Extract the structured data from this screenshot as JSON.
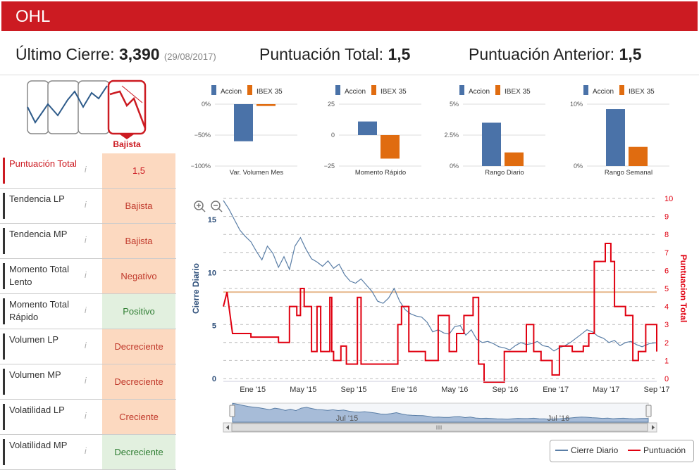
{
  "header": {
    "title": "OHL"
  },
  "summary": {
    "ultimo_label": "Último Cierre:",
    "ultimo_value": "3,390",
    "ultimo_date": "(29/08/2017)",
    "total_label": "Puntuación Total:",
    "total_value": "1,5",
    "anterior_label": "Puntuación Anterior:",
    "anterior_value": "1,5"
  },
  "trend_badge": "Bajista",
  "sidebar": {
    "rows": [
      {
        "label": "Puntuación Total",
        "value": "1,5",
        "status": "neg"
      },
      {
        "label": "Tendencia LP",
        "value": "Bajista",
        "status": "neg"
      },
      {
        "label": "Tendencia MP",
        "value": "Bajista",
        "status": "neg"
      },
      {
        "label": "Momento Total Lento",
        "value": "Negativo",
        "status": "neg"
      },
      {
        "label": "Momento Total Rápido",
        "value": "Positivo",
        "status": "pos"
      },
      {
        "label": "Volumen LP",
        "value": "Decreciente",
        "status": "neg"
      },
      {
        "label": "Volumen MP",
        "value": "Decreciente",
        "status": "neg"
      },
      {
        "label": "Volatilidad LP",
        "value": "Creciente",
        "status": "neg"
      },
      {
        "label": "Volatilidad MP",
        "value": "Decreciente",
        "status": "pos"
      }
    ]
  },
  "info_glyph": "i",
  "colors": {
    "accion": "#4a72a8",
    "ibex": "#e06c10",
    "red": "#cc1b22",
    "price": "#5a7ea6"
  },
  "chart_data": [
    {
      "type": "bar",
      "title": "Var. Volumen Mes",
      "categories": [
        "Accion",
        "IBEX 35"
      ],
      "values": [
        -60,
        -3
      ],
      "yticks": [
        "0%",
        "−50%",
        "−100%"
      ],
      "ylim": [
        -100,
        0
      ]
    },
    {
      "type": "bar",
      "title": "Momento Rápido",
      "categories": [
        "Accion",
        "IBEX 35"
      ],
      "values": [
        11,
        -19
      ],
      "yticks": [
        "25",
        "0",
        "−25"
      ],
      "ylim": [
        -25,
        25
      ]
    },
    {
      "type": "bar",
      "title": "Rango Diario",
      "categories": [
        "Accion",
        "IBEX 35"
      ],
      "values": [
        3.5,
        1.1
      ],
      "yticks": [
        "5%",
        "2.5%",
        "0%"
      ],
      "ylim": [
        0,
        5
      ]
    },
    {
      "type": "bar",
      "title": "Rango Semanal",
      "categories": [
        "Accion",
        "IBEX 35"
      ],
      "values": [
        9.2,
        3.1
      ],
      "yticks": [
        "10%",
        "0%"
      ],
      "ylim": [
        0,
        10
      ]
    },
    {
      "type": "line",
      "xlabels": [
        "Ene '15",
        "May '15",
        "Sep '15",
        "Ene '16",
        "May '16",
        "Sep '16",
        "Ene '17",
        "May '17",
        "Sep '17"
      ],
      "navigator_labels": [
        "Jul '15",
        "Jul '16"
      ],
      "ylabel_left": "Cierre Diario",
      "ylabel_right": "Puntuacion Total",
      "left_ticks": [
        "15",
        "10",
        "5",
        "0"
      ],
      "right_ticks": [
        "10",
        "9",
        "8",
        "7",
        "6",
        "5",
        "4",
        "3",
        "2",
        "1",
        "0"
      ],
      "ylim_left": [
        0,
        17
      ],
      "ylim_right": [
        0,
        10
      ],
      "threshold": 4.8,
      "price": [
        [
          0,
          16.8
        ],
        [
          0.3,
          16
        ],
        [
          0.6,
          15
        ],
        [
          0.9,
          14
        ],
        [
          1.2,
          13.4
        ],
        [
          1.5,
          12.9
        ],
        [
          1.8,
          12
        ],
        [
          2.1,
          11.2
        ],
        [
          2.4,
          12.5
        ],
        [
          2.7,
          11.8
        ],
        [
          3.0,
          10.5
        ],
        [
          3.3,
          11.5
        ],
        [
          3.6,
          10.3
        ],
        [
          3.9,
          12.5
        ],
        [
          4.2,
          13.3
        ],
        [
          4.5,
          12.2
        ],
        [
          4.8,
          11.3
        ],
        [
          5.1,
          11
        ],
        [
          5.4,
          10.6
        ],
        [
          5.7,
          11.1
        ],
        [
          6.0,
          10.4
        ],
        [
          6.3,
          10.8
        ],
        [
          6.6,
          9.8
        ],
        [
          6.9,
          9.2
        ],
        [
          7.2,
          9.0
        ],
        [
          7.5,
          9.4
        ],
        [
          7.8,
          8.8
        ],
        [
          8.1,
          8.2
        ],
        [
          8.4,
          7.3
        ],
        [
          8.7,
          7.1
        ],
        [
          9.0,
          7.6
        ],
        [
          9.3,
          8.5
        ],
        [
          9.6,
          7.3
        ],
        [
          9.9,
          6.5
        ],
        [
          10.2,
          6.1
        ],
        [
          10.5,
          5.9
        ],
        [
          10.8,
          5.8
        ],
        [
          11.1,
          5.3
        ],
        [
          11.4,
          4.4
        ],
        [
          11.7,
          4.6
        ],
        [
          12.0,
          4.3
        ],
        [
          12.3,
          4.2
        ],
        [
          12.6,
          4.9
        ],
        [
          12.9,
          5.0
        ],
        [
          13.2,
          4.1
        ],
        [
          13.5,
          4.6
        ],
        [
          13.8,
          3.7
        ],
        [
          14.1,
          3.4
        ],
        [
          14.4,
          3.5
        ],
        [
          14.7,
          3.3
        ],
        [
          15.0,
          3.0
        ],
        [
          15.3,
          2.9
        ],
        [
          15.6,
          2.7
        ],
        [
          15.9,
          3.1
        ],
        [
          16.2,
          3.4
        ],
        [
          16.5,
          3.2
        ],
        [
          16.8,
          3.3
        ],
        [
          17.1,
          3.5
        ],
        [
          17.4,
          3.1
        ],
        [
          17.7,
          3.0
        ],
        [
          18.0,
          2.6
        ],
        [
          18.3,
          2.9
        ],
        [
          18.6,
          3.1
        ],
        [
          18.9,
          3.4
        ],
        [
          19.2,
          3.8
        ],
        [
          19.5,
          4.2
        ],
        [
          19.8,
          4.6
        ],
        [
          20.1,
          4.4
        ],
        [
          20.4,
          4.0
        ],
        [
          20.7,
          3.8
        ],
        [
          21.0,
          3.4
        ],
        [
          21.3,
          3.6
        ],
        [
          21.6,
          3.1
        ],
        [
          21.9,
          3.4
        ],
        [
          22.2,
          3.5
        ],
        [
          22.5,
          3.2
        ],
        [
          22.8,
          3.0
        ],
        [
          23.2,
          3.3
        ],
        [
          23.6,
          3.39
        ]
      ],
      "score": [
        [
          0,
          4
        ],
        [
          0.2,
          4.8
        ],
        [
          0.5,
          2.5
        ],
        [
          1.5,
          2.5
        ],
        [
          1.5,
          2.3
        ],
        [
          3,
          2.3
        ],
        [
          3,
          2.0
        ],
        [
          3.6,
          2.0
        ],
        [
          3.6,
          4.0
        ],
        [
          4,
          4.0
        ],
        [
          4,
          3.5
        ],
        [
          4.2,
          3.5
        ],
        [
          4.2,
          5.0
        ],
        [
          4.4,
          5.0
        ],
        [
          4.4,
          4.0
        ],
        [
          4.8,
          4.0
        ],
        [
          4.8,
          1.5
        ],
        [
          5.1,
          1.5
        ],
        [
          5.1,
          4.0
        ],
        [
          5.3,
          4.0
        ],
        [
          5.3,
          1.5
        ],
        [
          5.8,
          1.5
        ],
        [
          5.8,
          4.5
        ],
        [
          5.9,
          4.5
        ],
        [
          5.9,
          1.5
        ],
        [
          6,
          1.5
        ],
        [
          6,
          1.0
        ],
        [
          6.4,
          1.0
        ],
        [
          6.4,
          1.8
        ],
        [
          6.7,
          1.8
        ],
        [
          6.7,
          0.8
        ],
        [
          7.3,
          0.8
        ],
        [
          7.3,
          4.5
        ],
        [
          7.5,
          4.5
        ],
        [
          7.5,
          0.8
        ],
        [
          9.5,
          0.8
        ],
        [
          9.5,
          3.0
        ],
        [
          9.7,
          3.0
        ],
        [
          9.7,
          4.0
        ],
        [
          10.1,
          4.0
        ],
        [
          10.1,
          1.5
        ],
        [
          11.0,
          1.5
        ],
        [
          11.0,
          1.0
        ],
        [
          11.7,
          1.0
        ],
        [
          11.7,
          3.5
        ],
        [
          12.3,
          3.5
        ],
        [
          12.3,
          1.5
        ],
        [
          12.7,
          1.5
        ],
        [
          12.7,
          2.5
        ],
        [
          13.1,
          2.5
        ],
        [
          13.1,
          3.5
        ],
        [
          13.6,
          3.5
        ],
        [
          13.6,
          4.5
        ],
        [
          13.9,
          4.5
        ],
        [
          13.9,
          0.8
        ],
        [
          14.2,
          0.8
        ],
        [
          14.2,
          -0.2
        ],
        [
          15.3,
          -0.2
        ],
        [
          15.3,
          1.5
        ],
        [
          16.5,
          1.5
        ],
        [
          16.5,
          3.0
        ],
        [
          16.9,
          3.0
        ],
        [
          16.9,
          1.5
        ],
        [
          17.3,
          1.5
        ],
        [
          17.3,
          1.0
        ],
        [
          17.9,
          1.0
        ],
        [
          17.9,
          0.2
        ],
        [
          18.3,
          0.2
        ],
        [
          18.3,
          1.8
        ],
        [
          19.0,
          1.8
        ],
        [
          19.0,
          1.5
        ],
        [
          19.6,
          1.5
        ],
        [
          19.6,
          1.8
        ],
        [
          19.9,
          1.8
        ],
        [
          19.9,
          2.5
        ],
        [
          20.2,
          2.5
        ],
        [
          20.2,
          6.5
        ],
        [
          20.8,
          6.5
        ],
        [
          20.8,
          7.5
        ],
        [
          21.1,
          7.5
        ],
        [
          21.1,
          6.5
        ],
        [
          21.3,
          6.5
        ],
        [
          21.3,
          4.0
        ],
        [
          21.9,
          4.0
        ],
        [
          21.9,
          3.5
        ],
        [
          22.3,
          3.5
        ],
        [
          22.3,
          1.0
        ],
        [
          22.6,
          1.0
        ],
        [
          22.6,
          1.5
        ],
        [
          23.0,
          1.5
        ],
        [
          23.0,
          3.0
        ],
        [
          23.6,
          3.0
        ],
        [
          23.6,
          1.5
        ]
      ]
    }
  ],
  "legend": {
    "price": "Cierre Diario",
    "score": "Puntuación"
  }
}
